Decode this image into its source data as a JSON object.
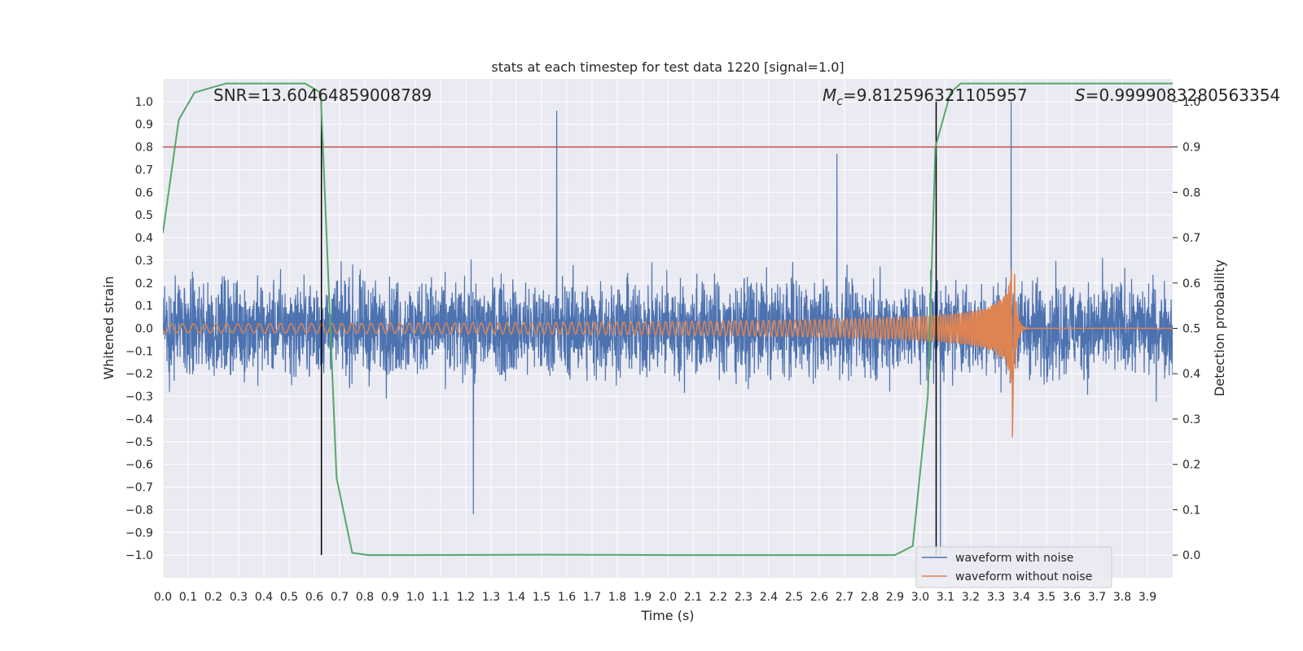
{
  "chart_data": {
    "type": "line",
    "title": "stats at each timestep for test data 1220 [signal=1.0]",
    "xlabel": "Time (s)",
    "ylabel": "Whitened strain",
    "y2label": "Detection probability",
    "xlim": [
      0.0,
      4.0
    ],
    "ylim": [
      -1.1,
      1.1
    ],
    "y2lim": [
      -0.05,
      1.05
    ],
    "xticks": [
      "0.0",
      "0.1",
      "0.2",
      "0.3",
      "0.4",
      "0.5",
      "0.6",
      "0.7",
      "0.8",
      "0.9",
      "1.0",
      "1.1",
      "1.2",
      "1.3",
      "1.4",
      "1.5",
      "1.6",
      "1.7",
      "1.8",
      "1.9",
      "2.0",
      "2.1",
      "2.2",
      "2.3",
      "2.4",
      "2.5",
      "2.6",
      "2.7",
      "2.8",
      "2.9",
      "3.0",
      "3.1",
      "3.2",
      "3.3",
      "3.4",
      "3.5",
      "3.6",
      "3.7",
      "3.8",
      "3.9"
    ],
    "yticks": [
      "1.0",
      "0.9",
      "0.8",
      "0.7",
      "0.6",
      "0.5",
      "0.4",
      "0.3",
      "0.2",
      "0.1",
      "0.0",
      "−0.1",
      "−0.2",
      "−0.3",
      "−0.4",
      "−0.5",
      "−0.6",
      "−0.7",
      "−0.8",
      "−0.9",
      "−1.0"
    ],
    "y2ticks": [
      "1.0",
      "0.9",
      "0.8",
      "0.7",
      "0.6",
      "0.5",
      "0.4",
      "0.3",
      "0.2",
      "0.1",
      "0.0"
    ],
    "annotations": {
      "snr": "SNR=13.60464859008789",
      "mc_symbol": "M",
      "mc_sub": "c",
      "mc_value": "=9.812596321105957",
      "s_symbol": "S",
      "s_value": "=0.9999083280563354"
    },
    "threshold": {
      "value": 0.9,
      "axis": "y2",
      "color": "#c44e52"
    },
    "vlines": [
      0.628,
      3.063
    ],
    "series": [
      {
        "name": "waveform with noise",
        "color": "#4c72b0",
        "description": "noisy whitened strain, amplitude mostly within ±0.5 with spikes reaching 0.96 near t=1.56 and 1.0 near t=3.36",
        "peaks": [
          [
            1.56,
            0.96
          ],
          [
            3.36,
            1.0
          ],
          [
            3.08,
            -1.0
          ],
          [
            1.23,
            -0.82
          ],
          [
            2.67,
            0.77
          ]
        ]
      },
      {
        "name": "waveform without noise",
        "color": "#dd8452",
        "description": "chirp signal growing in amplitude and frequency, merging near t=3.37",
        "points": [
          [
            0.0,
            0.02
          ],
          [
            1.0,
            0.025
          ],
          [
            2.0,
            0.04
          ],
          [
            2.8,
            0.08
          ],
          [
            3.1,
            0.15
          ],
          [
            3.3,
            0.28
          ],
          [
            3.36,
            0.32
          ],
          [
            3.37,
            -0.55
          ],
          [
            3.4,
            0.0
          ],
          [
            4.0,
            0.0
          ]
        ]
      },
      {
        "name": "detection probability",
        "axis": "y2",
        "color": "#55a868",
        "x": [
          0.0,
          0.063,
          0.125,
          0.188,
          0.25,
          0.313,
          0.375,
          0.438,
          0.5,
          0.563,
          0.625,
          0.688,
          0.75,
          0.813,
          1.0,
          1.5,
          2.0,
          2.5,
          2.9,
          2.97,
          3.03,
          3.06,
          3.12,
          3.16,
          3.3,
          3.5,
          3.7,
          4.0
        ],
        "y": [
          0.71,
          0.96,
          1.02,
          1.03,
          1.04,
          1.04,
          1.04,
          1.04,
          1.04,
          1.04,
          1.02,
          0.17,
          0.005,
          0.0,
          0.0,
          0.001,
          0.0,
          0.0,
          0.0,
          0.02,
          0.35,
          0.9,
          1.02,
          1.04,
          1.04,
          1.04,
          1.04,
          1.04
        ]
      }
    ],
    "legend": {
      "location": "lower-right",
      "entries": [
        "waveform with noise",
        "waveform without noise"
      ]
    }
  }
}
